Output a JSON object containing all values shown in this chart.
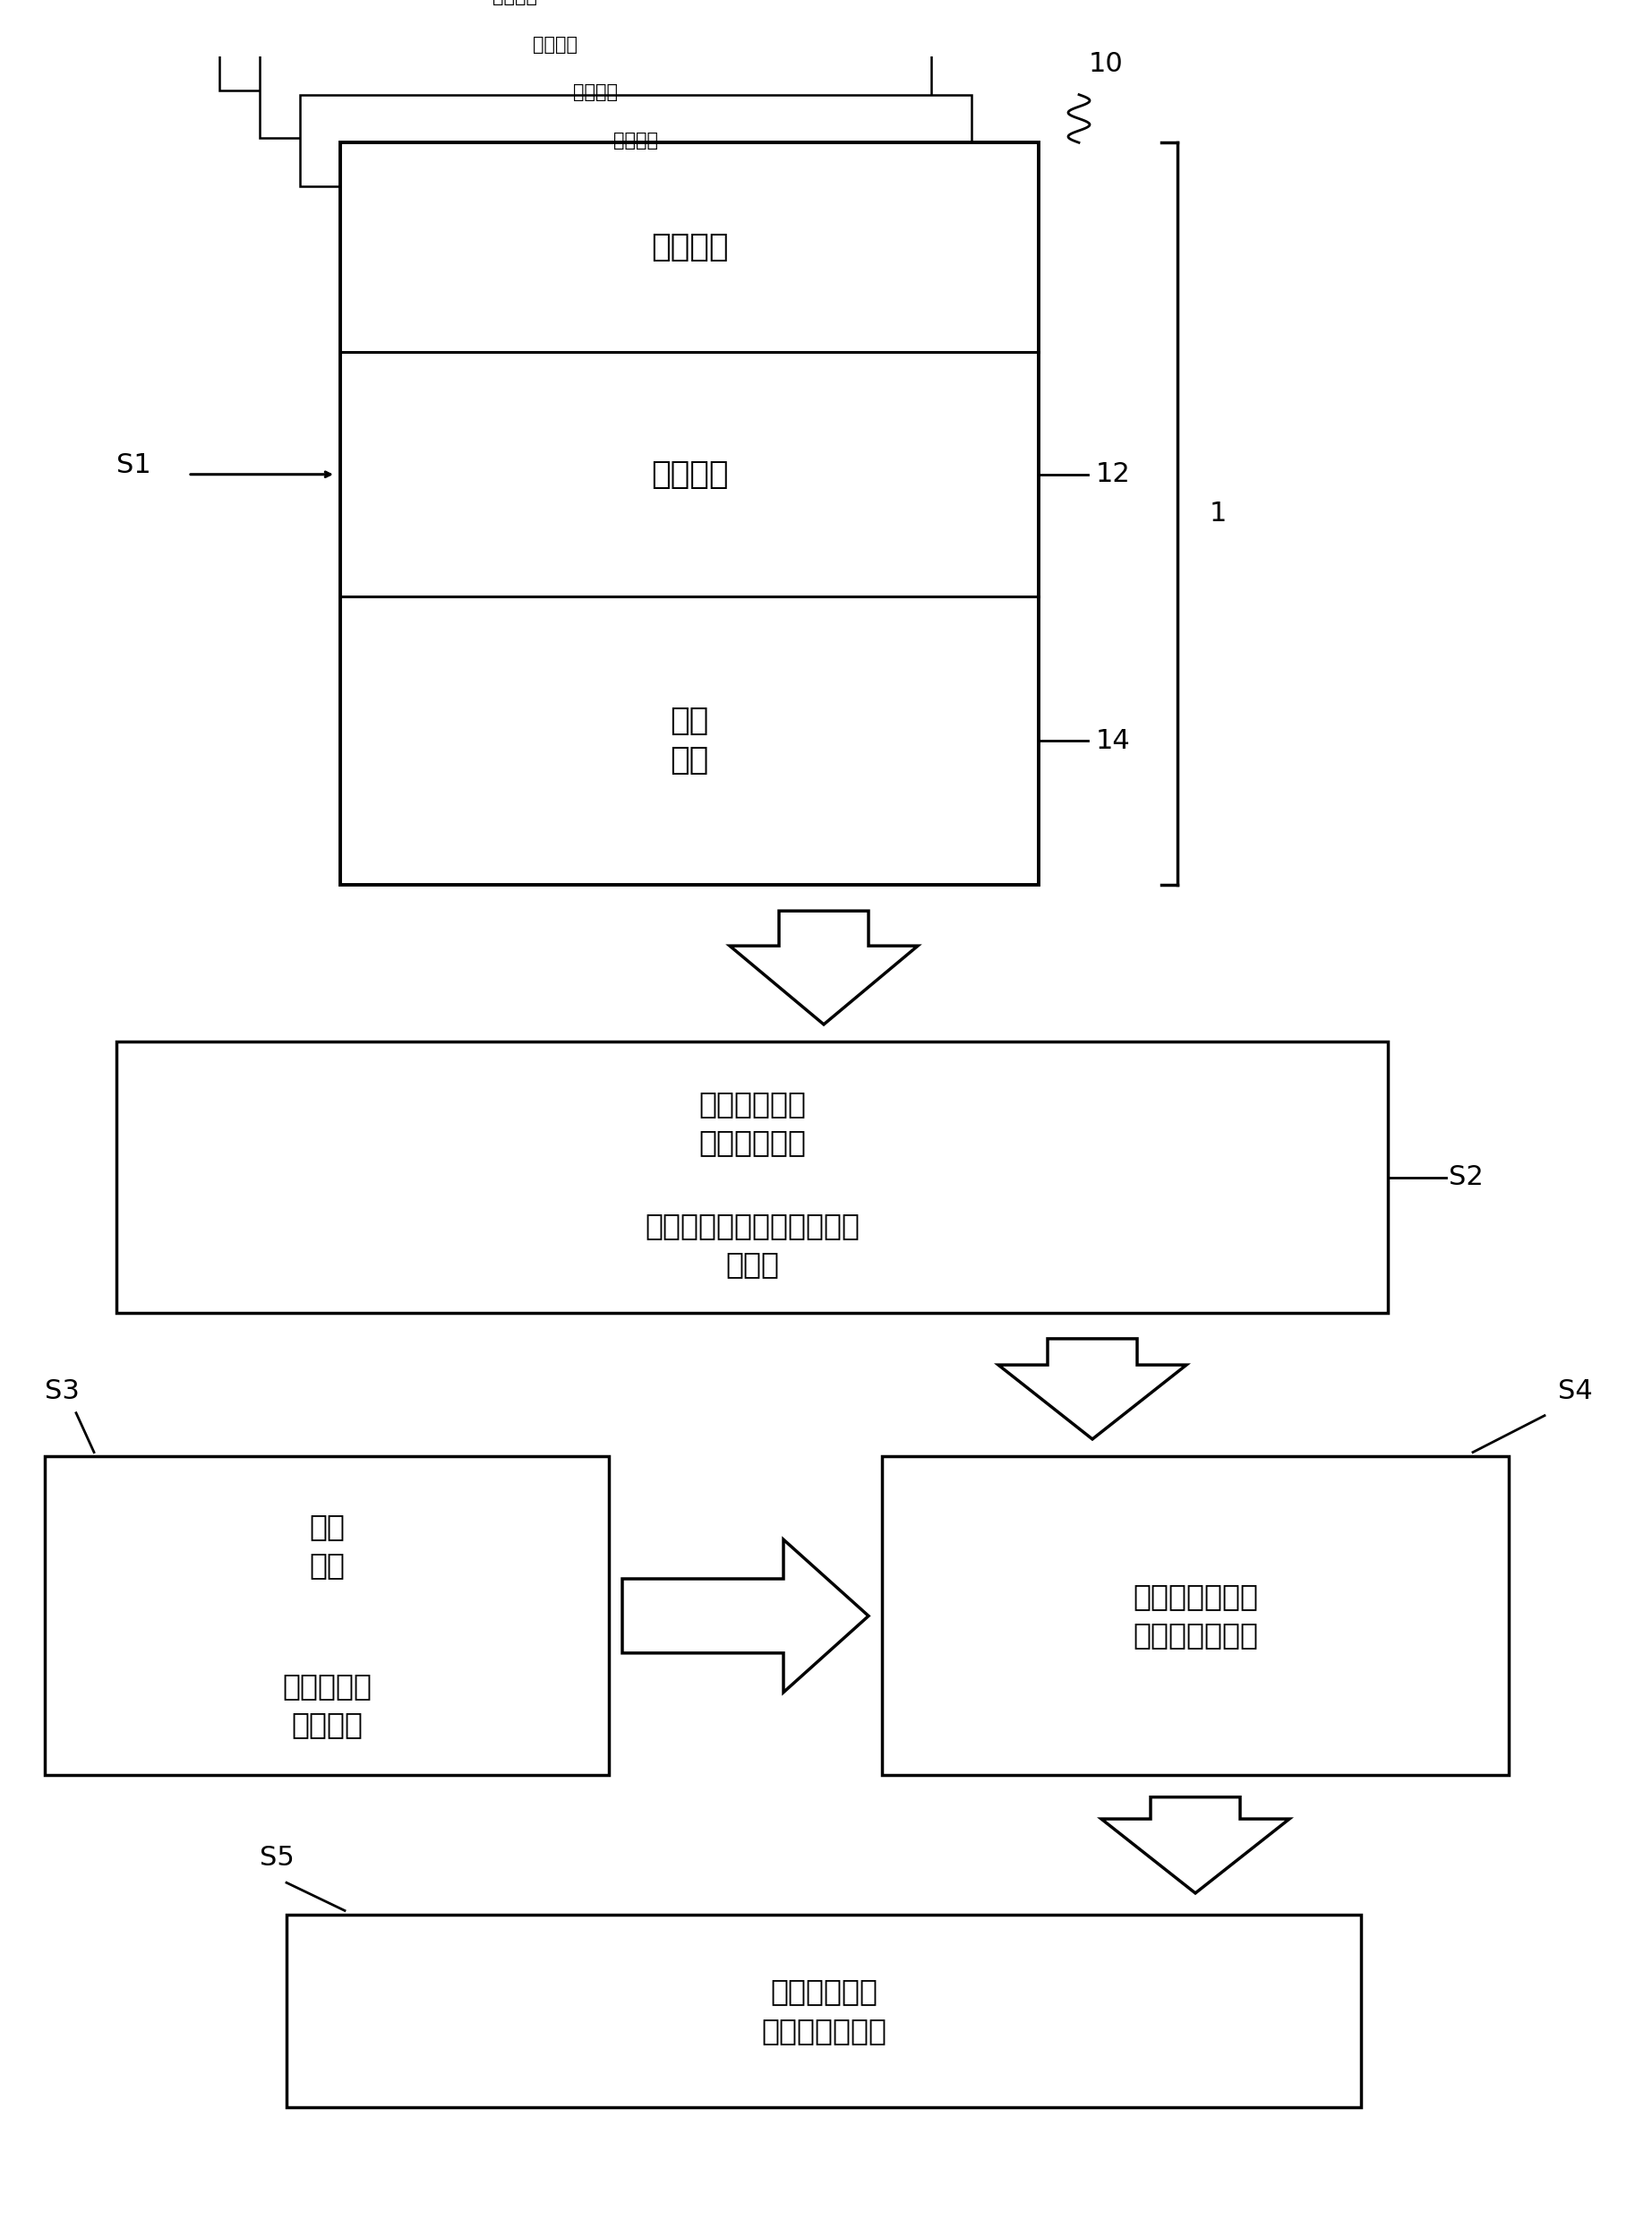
{
  "bg_color": "#ffffff",
  "text_color": "#000000",
  "box_edge_color": "#000000",
  "box_face_color": "#ffffff",
  "labels": {
    "ref_data_small": "参考数据",
    "image_data": "图像数据",
    "attach_data": "附加\n数据",
    "s1": "S1",
    "s2": "S2",
    "s3": "S3",
    "s4": "S4",
    "s5": "S5",
    "label_10": "10",
    "label_12": "12",
    "label_14": "14",
    "label_1": "1",
    "box2_line1": "用参考数据集",
    "box2_line2": "导出统计模型",
    "box2_line3": "图像数据和附加数据之间的",
    "box2_line4": "相关性",
    "box3_line1": "个体",
    "box3_line2": "订单",
    "box3_line3": "订单数据集",
    "box3_line4": "图像数据",
    "box4_line1": "基于统计模型的",
    "box4_line2": "附加数据的计算",
    "box5_line1": "个体生物特征",
    "box5_line2": "眼镜镜片的计算"
  }
}
